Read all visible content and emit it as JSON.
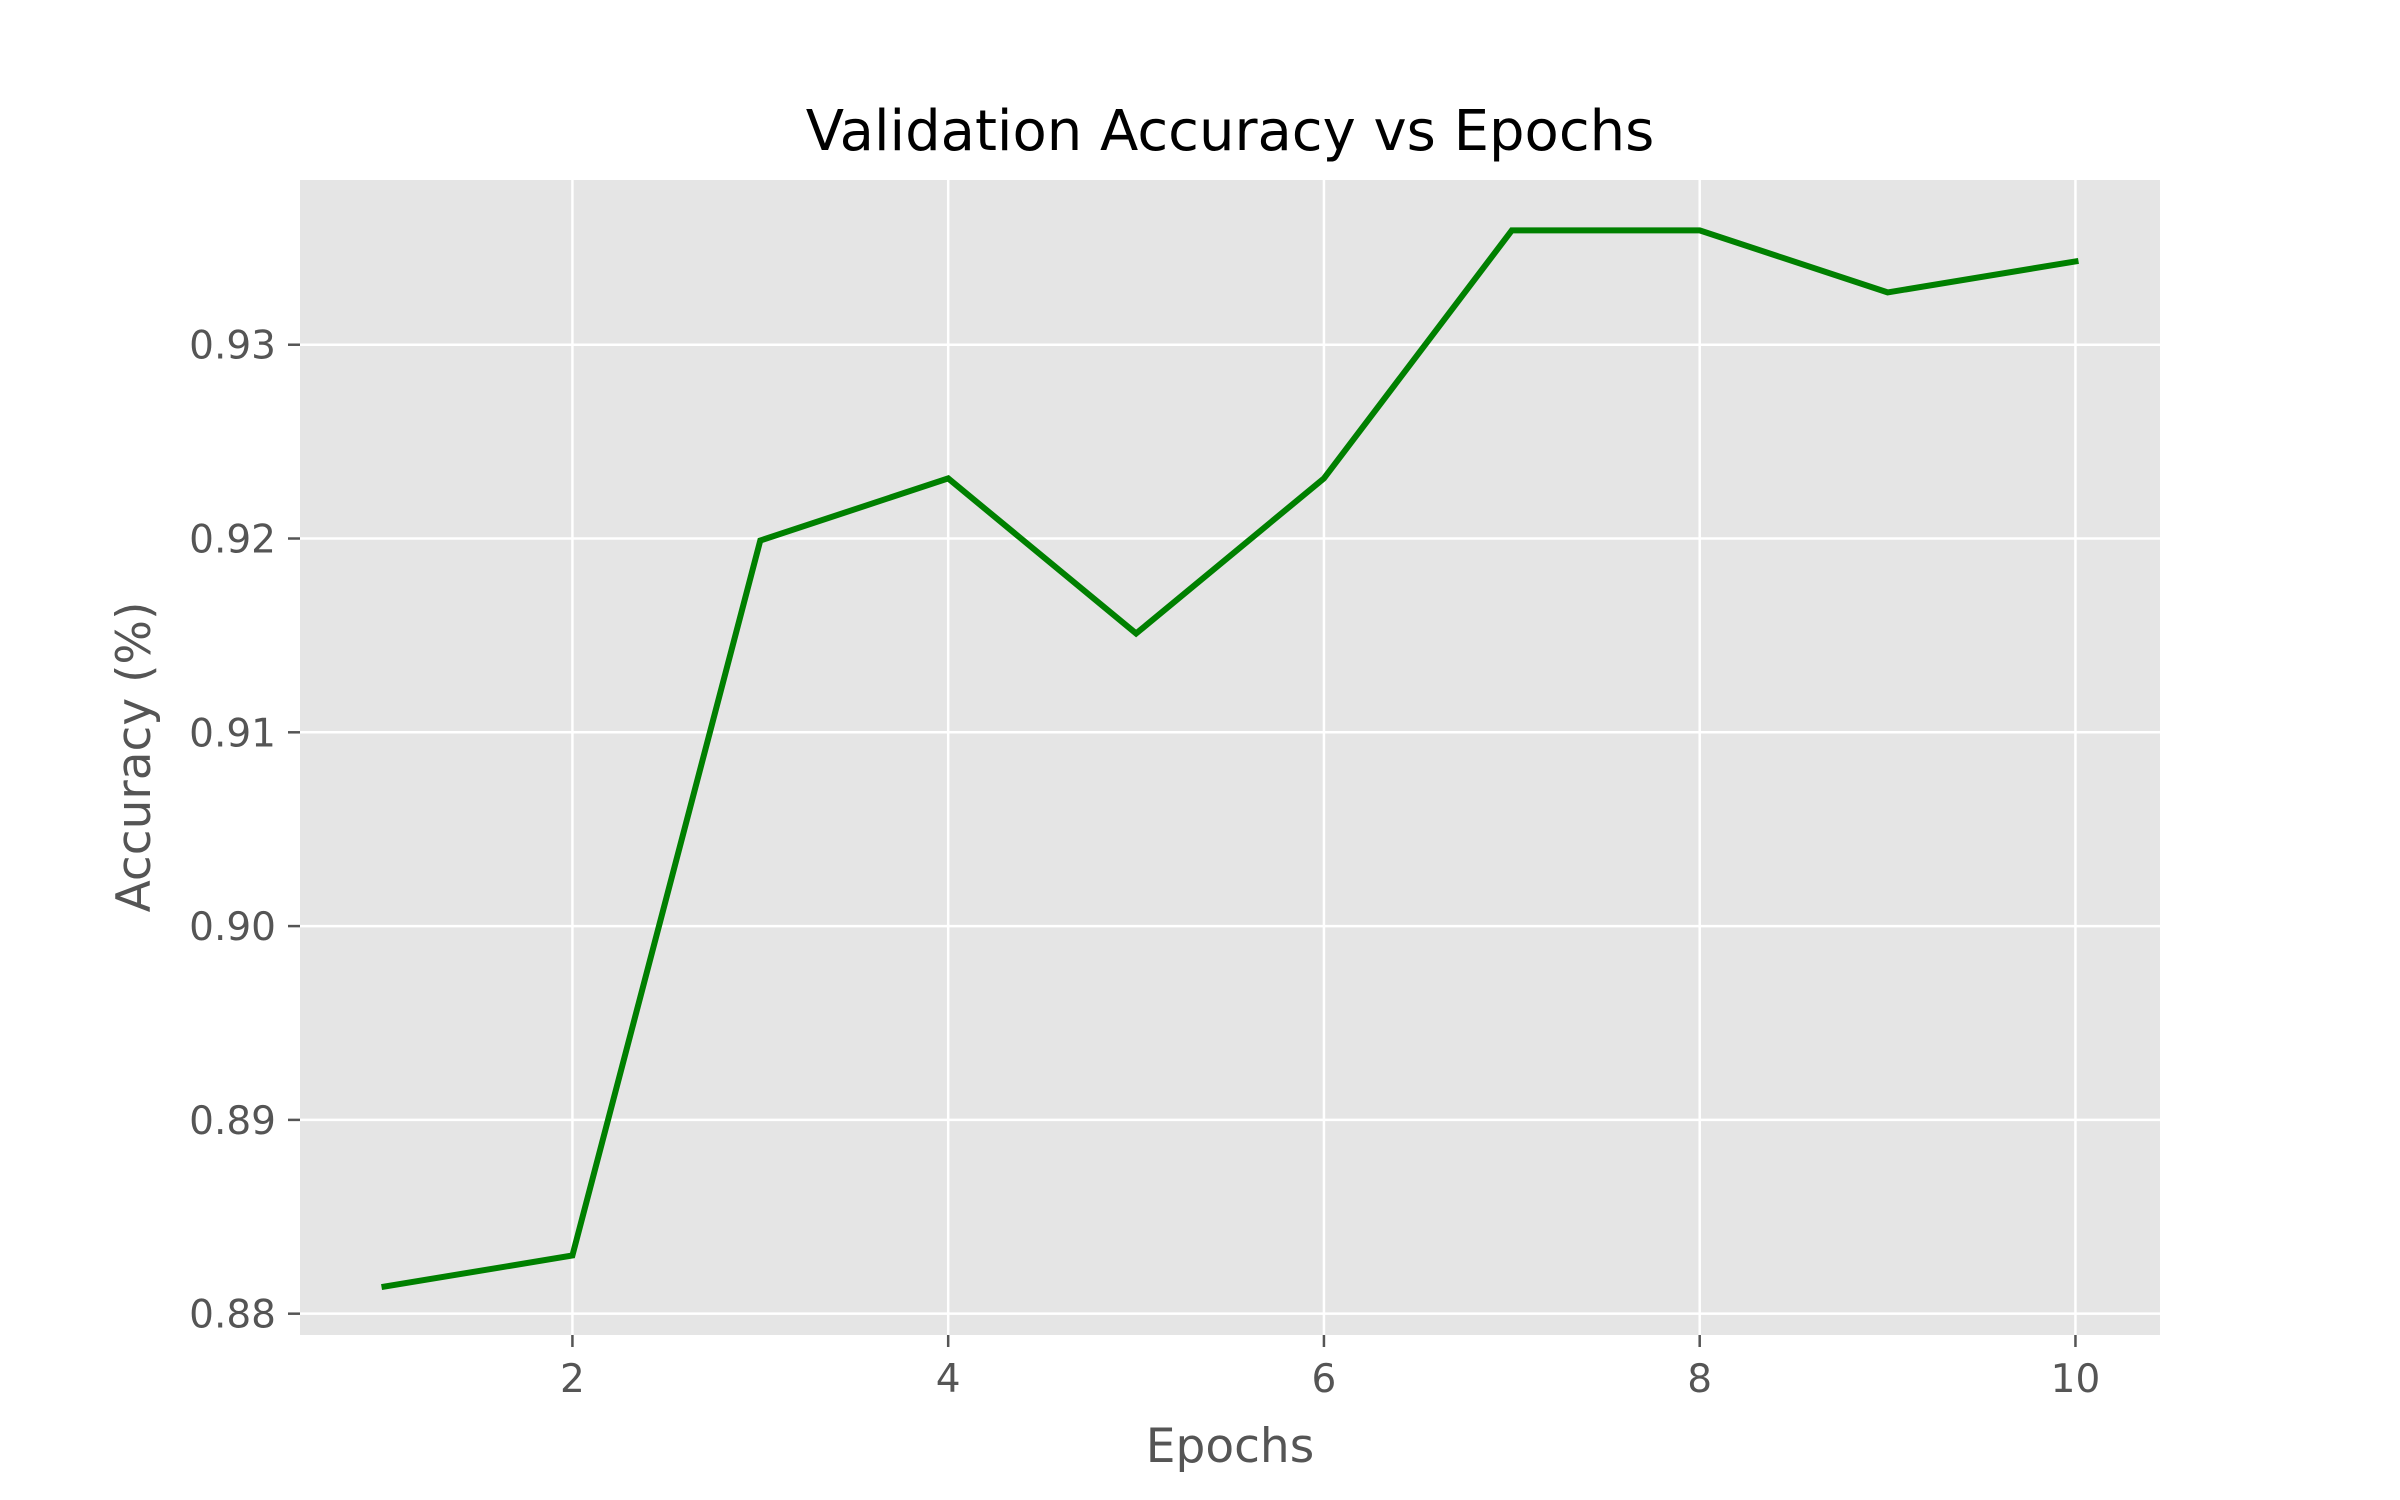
{
  "chart_data": {
    "type": "line",
    "title": "Validation Accuracy vs Epochs",
    "xlabel": "Epochs",
    "ylabel": "Accuracy (%)",
    "x": [
      1,
      2,
      3,
      4,
      5,
      6,
      7,
      8,
      9,
      10
    ],
    "series": [
      {
        "values": [
          0.8814,
          0.883,
          0.9199,
          0.9231,
          0.9151,
          0.9231,
          0.9359,
          0.9359,
          0.9327,
          0.9343
        ],
        "color": "#008000"
      }
    ],
    "xlim": [
      0.55,
      10.45
    ],
    "ylim": [
      0.8789,
      0.9385
    ],
    "xticks": [
      2,
      4,
      6,
      8,
      10
    ],
    "xtick_labels": [
      "2",
      "4",
      "6",
      "8",
      "10"
    ],
    "yticks": [
      0.88,
      0.89,
      0.9,
      0.91,
      0.92,
      0.93
    ],
    "ytick_labels": [
      "0.88",
      "0.89",
      "0.90",
      "0.91",
      "0.92",
      "0.93"
    ],
    "grid": true,
    "style": "ggplot",
    "colors": {
      "plot_background": "#e5e5e5",
      "grid": "#ffffff",
      "line": "#008000",
      "text": "#555555",
      "title": "#000000"
    }
  }
}
